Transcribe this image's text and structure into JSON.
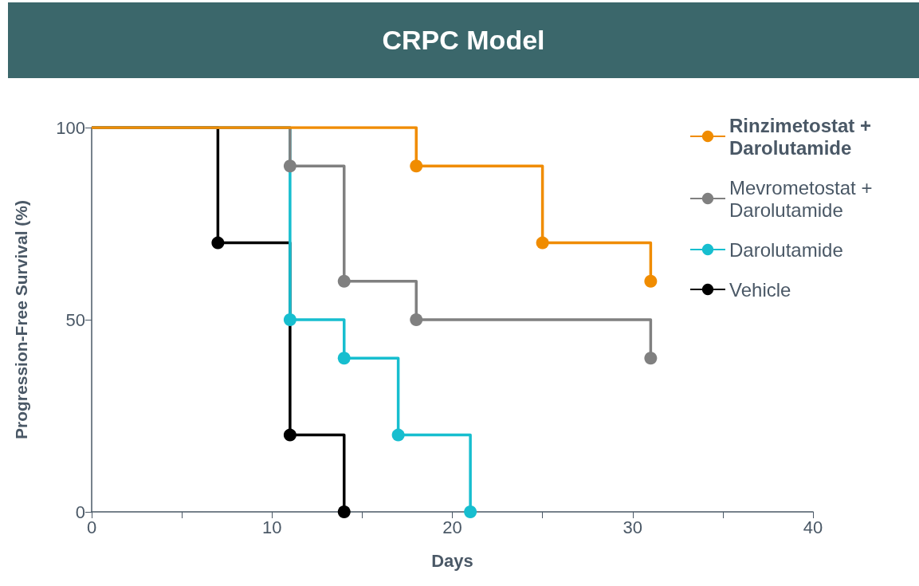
{
  "chart_data": {
    "type": "step",
    "title": "CRPC Model",
    "xlabel": "Days",
    "ylabel": "Progression-Free Survival (%)",
    "xlim": [
      0,
      40
    ],
    "xticks": [
      0,
      {
        "value": 5,
        "label": null
      },
      10,
      {
        "value": 15,
        "label": null
      },
      20,
      {
        "value": 25,
        "label": null
      },
      30,
      {
        "value": 35,
        "label": null
      },
      40
    ],
    "ylim": [
      0,
      100
    ],
    "yticks": [
      0,
      50,
      100
    ],
    "grid": false,
    "legend": "top right",
    "marker": "circle",
    "line_style": "solid",
    "series": [
      {
        "name": "Rinzimetostat + Darolutamide",
        "color": "#f08c00",
        "x": [
          0,
          18,
          25,
          31
        ],
        "values": [
          100,
          90,
          70,
          60
        ]
      },
      {
        "name": "Mevrometostat + Darolutamide",
        "color": "#808080",
        "x": [
          0,
          11,
          14,
          18,
          31
        ],
        "values": [
          100,
          90,
          60,
          50,
          40
        ]
      },
      {
        "name": "Darolutamide",
        "color": "#17becf",
        "x": [
          0,
          11,
          14,
          17,
          21
        ],
        "values": [
          100,
          50,
          40,
          20,
          0
        ]
      },
      {
        "name": "Vehicle",
        "color": "#000000",
        "x": [
          0,
          7,
          11,
          14
        ],
        "values": [
          100,
          70,
          20,
          0
        ]
      }
    ]
  }
}
